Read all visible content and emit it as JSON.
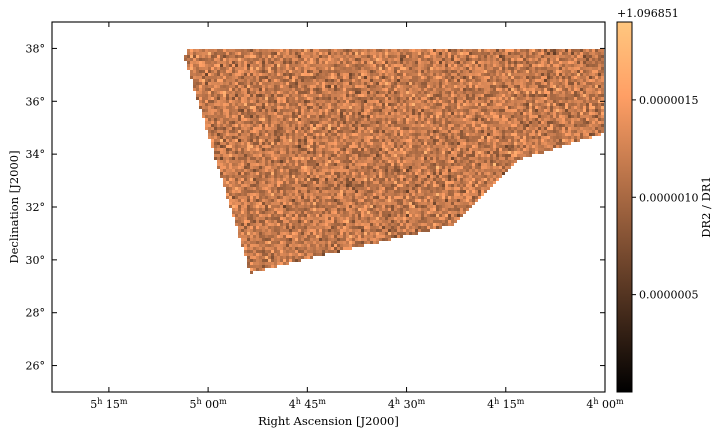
{
  "chart_data": {
    "type": "heatmap",
    "title": "",
    "xlabel": "Right Ascension [J2000]",
    "ylabel": "Declination [J2000]",
    "x_ticks": [
      {
        "h": "5",
        "m": "15",
        "ra_deg": 78.75
      },
      {
        "h": "5",
        "m": "00",
        "ra_deg": 75.0
      },
      {
        "h": "4",
        "m": "45",
        "ra_deg": 71.25
      },
      {
        "h": "4",
        "m": "30",
        "ra_deg": 67.5
      },
      {
        "h": "4",
        "m": "15",
        "ra_deg": 63.75
      },
      {
        "h": "4",
        "m": "00",
        "ra_deg": 60.0
      }
    ],
    "y_ticks": [
      {
        "label": "26°",
        "value": 26
      },
      {
        "label": "28°",
        "value": 28
      },
      {
        "label": "30°",
        "value": 30
      },
      {
        "label": "32°",
        "value": 32
      },
      {
        "label": "34°",
        "value": 34
      },
      {
        "label": "36°",
        "value": 36
      },
      {
        "label": "38°",
        "value": 38
      }
    ],
    "xlim_ra_deg": [
      80.9,
      60.0
    ],
    "ylim_dec_deg": [
      25.0,
      39.0
    ],
    "footprint_ra_dec": [
      [
        75.9,
        37.7
      ],
      [
        75.7,
        38.0
      ],
      [
        60.0,
        38.0
      ],
      [
        60.0,
        34.8
      ],
      [
        63.2,
        33.8
      ],
      [
        65.8,
        31.3
      ],
      [
        71.4,
        30.0
      ],
      [
        73.4,
        29.5
      ],
      [
        75.9,
        37.7
      ]
    ],
    "colorbar": {
      "label": "DR2 / DR1",
      "offset_text": "+1.096851",
      "ticks": [
        {
          "label": "0.0000005",
          "value": 5e-07
        },
        {
          "label": "0.0000010",
          "value": 1e-06
        },
        {
          "label": "0.0000015",
          "value": 1.5e-06
        }
      ],
      "range": [
        0.0,
        1.9e-06
      ],
      "colormap": "copper",
      "color_low": "#000000",
      "color_high": "#ffc77f"
    }
  }
}
